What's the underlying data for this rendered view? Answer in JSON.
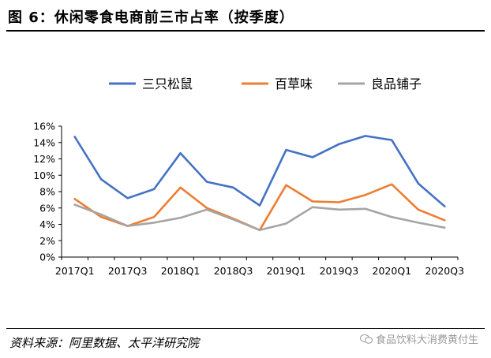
{
  "title": "图 6：休闲零食电商前三市占率（按季度）",
  "source": "资料来源：阿里数据、太平洋研究院",
  "watermark": "食品饮料大消费黄付生",
  "colors": {
    "series": [
      "#4472C4",
      "#ED7D31",
      "#A5A5A5"
    ],
    "axis": "#000000"
  },
  "chart_data": {
    "type": "line",
    "x": [
      "2017Q1",
      "2017Q2",
      "2017Q3",
      "2017Q4",
      "2018Q1",
      "2018Q2",
      "2018Q3",
      "2018Q4",
      "2019Q1",
      "2019Q2",
      "2019Q3",
      "2019Q4",
      "2020Q1",
      "2020Q2",
      "2020Q3"
    ],
    "x_tick_labels": [
      "2017Q1",
      "2017Q3",
      "2018Q1",
      "2018Q3",
      "2019Q1",
      "2019Q3",
      "2020Q1",
      "2020Q3"
    ],
    "y_tick_labels": [
      "0%",
      "2%",
      "4%",
      "6%",
      "8%",
      "10%",
      "12%",
      "14%",
      "16%"
    ],
    "ylim": [
      0,
      16
    ],
    "legend_position": "top",
    "grid": false,
    "series": [
      {
        "name": "三只松鼠",
        "values": [
          14.7,
          9.5,
          7.2,
          8.3,
          12.7,
          9.2,
          8.5,
          6.3,
          13.1,
          12.2,
          13.8,
          14.8,
          14.3,
          9.0,
          6.2
        ]
      },
      {
        "name": "百草味",
        "values": [
          7.1,
          4.9,
          3.8,
          4.9,
          8.5,
          6.0,
          4.7,
          3.3,
          8.8,
          6.8,
          6.7,
          7.6,
          8.9,
          5.8,
          4.5
        ]
      },
      {
        "name": "良品铺子",
        "values": [
          6.4,
          5.2,
          3.8,
          4.2,
          4.8,
          5.8,
          4.6,
          3.3,
          4.1,
          6.1,
          5.8,
          5.9,
          4.9,
          4.2,
          3.6
        ]
      }
    ]
  }
}
